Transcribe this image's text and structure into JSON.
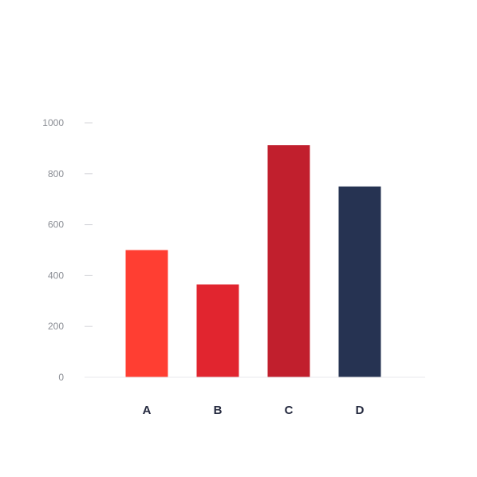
{
  "chart_data": {
    "type": "bar",
    "categories": [
      "A",
      "B",
      "C",
      "D"
    ],
    "values": [
      500,
      365,
      912,
      750
    ],
    "ylim": [
      0,
      1000
    ],
    "yticks": [
      0,
      200,
      400,
      600,
      800,
      1000
    ],
    "grid": false,
    "legend": "none",
    "colors": {
      "bars": [
        "#ff3e32",
        "#e1252f",
        "#c11f2d",
        "#263352"
      ],
      "axis_line": "#e9e9ec",
      "tick_mark": "#d5d6da",
      "y_tick_label": "#8a8d94",
      "x_tick_label": "#262b40"
    }
  }
}
